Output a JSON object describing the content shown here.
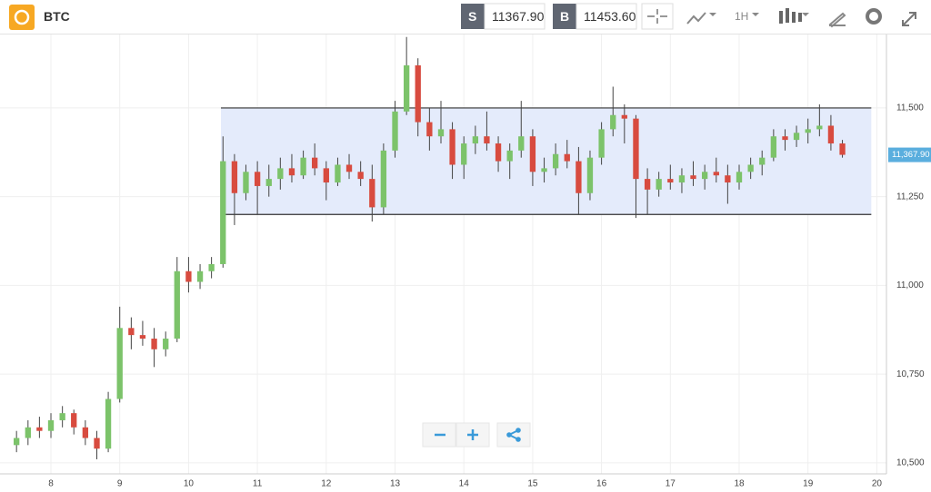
{
  "toolbar": {
    "symbol": "BTC",
    "sell_label": "S",
    "sell_price": "11367.90",
    "buy_label": "B",
    "buy_price": "11453.60",
    "interval": "1H"
  },
  "chart_data": {
    "type": "candlestick",
    "x": [
      7.5,
      7.667,
      7.833,
      8.0,
      8.167,
      8.333,
      8.5,
      8.667,
      8.833,
      9.0,
      9.167,
      9.333,
      9.5,
      9.667,
      9.833,
      10.0,
      10.167,
      10.333,
      10.5,
      10.667,
      10.833,
      11.0,
      11.167,
      11.333,
      11.5,
      11.667,
      11.833,
      12.0,
      12.167,
      12.333,
      12.5,
      12.667,
      12.833,
      13.0,
      13.167,
      13.333,
      13.5,
      13.667,
      13.833,
      14.0,
      14.167,
      14.333,
      14.5,
      14.667,
      14.833,
      15.0,
      15.167,
      15.333,
      15.5,
      15.667,
      15.833,
      16.0,
      16.167,
      16.333,
      16.5,
      16.667,
      16.833,
      17.0,
      17.167,
      17.333,
      17.5,
      17.667,
      17.833,
      18.0,
      18.167,
      18.333,
      18.5,
      18.667,
      18.833,
      19.0,
      19.167,
      19.333,
      19.5
    ],
    "open": [
      10550,
      10570,
      10600,
      10590,
      10620,
      10640,
      10600,
      10570,
      10540,
      10680,
      10880,
      10860,
      10850,
      10820,
      10850,
      11040,
      11010,
      11040,
      11060,
      11350,
      11260,
      11320,
      11280,
      11300,
      11330,
      11310,
      11360,
      11330,
      11290,
      11340,
      11320,
      11300,
      11220,
      11380,
      11490,
      11620,
      11460,
      11420,
      11440,
      11340,
      11400,
      11420,
      11400,
      11350,
      11380,
      11420,
      11320,
      11330,
      11370,
      11350,
      11260,
      11360,
      11440,
      11480,
      11470,
      11300,
      11270,
      11300,
      11290,
      11310,
      11300,
      11320,
      11310,
      11290,
      11320,
      11340,
      11360,
      11420,
      11410,
      11430,
      11440,
      11450,
      11400
    ],
    "high": [
      10590,
      10620,
      10630,
      10640,
      10660,
      10650,
      10620,
      10590,
      10700,
      10940,
      10910,
      10900,
      10880,
      10870,
      11080,
      11080,
      11060,
      11080,
      11420,
      11370,
      11340,
      11350,
      11340,
      11360,
      11370,
      11380,
      11400,
      11350,
      11360,
      11370,
      11350,
      11340,
      11400,
      11520,
      11700,
      11640,
      11500,
      11520,
      11460,
      11420,
      11450,
      11490,
      11420,
      11400,
      11520,
      11440,
      11360,
      11400,
      11410,
      11390,
      11380,
      11460,
      11560,
      11510,
      11480,
      11330,
      11320,
      11340,
      11330,
      11350,
      11340,
      11360,
      11340,
      11340,
      11360,
      11380,
      11440,
      11440,
      11450,
      11470,
      11510,
      11480,
      11410
    ],
    "low": [
      10530,
      10550,
      10570,
      10570,
      10600,
      10580,
      10550,
      10510,
      10530,
      10670,
      10820,
      10830,
      10770,
      10800,
      10840,
      10980,
      10990,
      11020,
      11050,
      11170,
      11240,
      11200,
      11250,
      11270,
      11290,
      11300,
      11310,
      11240,
      11280,
      11300,
      11280,
      11180,
      11200,
      11360,
      11480,
      11420,
      11380,
      11400,
      11300,
      11300,
      11370,
      11380,
      11320,
      11300,
      11360,
      11280,
      11290,
      11310,
      11330,
      11200,
      11240,
      11340,
      11420,
      11400,
      11190,
      11200,
      11250,
      11270,
      11260,
      11280,
      11270,
      11290,
      11230,
      11270,
      11300,
      11310,
      11350,
      11380,
      11390,
      11400,
      11420,
      11380,
      11360
    ],
    "close": [
      10570,
      10600,
      10590,
      10620,
      10640,
      10600,
      10570,
      10540,
      10680,
      10880,
      10860,
      10850,
      10820,
      10850,
      11040,
      11010,
      11040,
      11060,
      11350,
      11260,
      11320,
      11280,
      11300,
      11330,
      11310,
      11360,
      11330,
      11290,
      11340,
      11320,
      11300,
      11220,
      11380,
      11490,
      11620,
      11460,
      11420,
      11440,
      11340,
      11400,
      11420,
      11400,
      11350,
      11380,
      11420,
      11320,
      11330,
      11370,
      11350,
      11260,
      11360,
      11440,
      11480,
      11470,
      11300,
      11270,
      11300,
      11290,
      11310,
      11300,
      11320,
      11310,
      11290,
      11320,
      11340,
      11360,
      11420,
      11410,
      11430,
      11440,
      11450,
      11400,
      11367.9
    ],
    "up_color": "#7cc36a",
    "down_color": "#d84b3f",
    "xlim": [
      7.26,
      20.14
    ],
    "ylim": [
      10469,
      11707
    ],
    "xticks": [
      8,
      9,
      10,
      11,
      12,
      13,
      14,
      15,
      16,
      17,
      18,
      19,
      20
    ],
    "yticks": [
      {
        "value": 10500,
        "label": "10,500"
      },
      {
        "value": 10750,
        "label": "10,750"
      },
      {
        "value": 11000,
        "label": "11,000"
      },
      {
        "value": 11250,
        "label": "11,250"
      },
      {
        "value": 11500,
        "label": "11,500"
      }
    ],
    "grid": true,
    "range_box": {
      "xlim": [
        10.47,
        19.92
      ],
      "ylim": [
        11200,
        11500
      ],
      "color": "#e4ebfb"
    },
    "last_price": {
      "value": 11367.9,
      "label": "11,367.90",
      "color": "#5aaede"
    }
  }
}
